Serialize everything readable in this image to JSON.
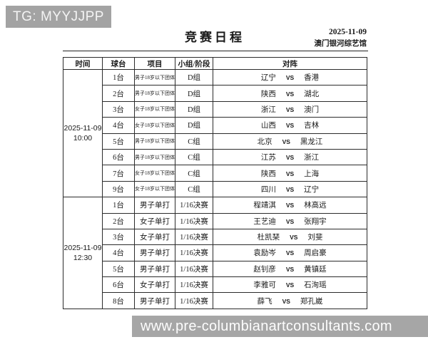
{
  "watermarks": {
    "top": "TG: MYYJJPP",
    "bottom": "www.pre-columbianartconsultants.com"
  },
  "header": {
    "title": "竞赛日程",
    "date": "2025-11-09",
    "venue": "澳门银河综艺馆"
  },
  "table": {
    "columns": [
      "时间",
      "球台",
      "项目",
      "小组/阶段",
      "对阵"
    ],
    "blocks": [
      {
        "time_line1": "2025-11-09",
        "time_line2": "10:00",
        "rows": [
          {
            "table_no": "1台",
            "event": "男子18岁以下团体",
            "stage": "D组",
            "home": "辽宁",
            "vs": "VS",
            "away": "香港"
          },
          {
            "table_no": "2台",
            "event": "男子18岁以下团体",
            "stage": "D组",
            "home": "陕西",
            "vs": "VS",
            "away": "湖北"
          },
          {
            "table_no": "3台",
            "event": "女子18岁以下团体",
            "stage": "D组",
            "home": "浙江",
            "vs": "VS",
            "away": "澳门"
          },
          {
            "table_no": "4台",
            "event": "女子18岁以下团体",
            "stage": "D组",
            "home": "山西",
            "vs": "VS",
            "away": "吉林"
          },
          {
            "table_no": "5台",
            "event": "男子18岁以下团体",
            "stage": "C组",
            "home": "北京",
            "vs": "VS",
            "away": "黑龙江"
          },
          {
            "table_no": "6台",
            "event": "男子18岁以下团体",
            "stage": "C组",
            "home": "江苏",
            "vs": "VS",
            "away": "浙江"
          },
          {
            "table_no": "7台",
            "event": "女子18岁以下团体",
            "stage": "C组",
            "home": "陕西",
            "vs": "VS",
            "away": "上海"
          },
          {
            "table_no": "9台",
            "event": "女子18岁以下团体",
            "stage": "C组",
            "home": "四川",
            "vs": "VS",
            "away": "辽宁"
          }
        ]
      },
      {
        "time_line1": "2025-11-09",
        "time_line2": "12:30",
        "rows": [
          {
            "table_no": "1台",
            "event": "男子单打",
            "stage": "1/16决赛",
            "home": "程靖淇",
            "vs": "VS",
            "away": "林高远"
          },
          {
            "table_no": "2台",
            "event": "女子单打",
            "stage": "1/16决赛",
            "home": "王艺迪",
            "vs": "VS",
            "away": "张翔宇"
          },
          {
            "table_no": "3台",
            "event": "女子单打",
            "stage": "1/16决赛",
            "home": "杜凯琹",
            "vs": "VS",
            "away": "刘斐"
          },
          {
            "table_no": "4台",
            "event": "男子单打",
            "stage": "1/16决赛",
            "home": "袁励岑",
            "vs": "VS",
            "away": "周启豪"
          },
          {
            "table_no": "5台",
            "event": "男子单打",
            "stage": "1/16决赛",
            "home": "赵钊彦",
            "vs": "VS",
            "away": "黄镇廷"
          },
          {
            "table_no": "6台",
            "event": "女子单打",
            "stage": "1/16决赛",
            "home": "李雅可",
            "vs": "VS",
            "away": "石洵瑶"
          },
          {
            "table_no": "8台",
            "event": "男子单打",
            "stage": "1/16决赛",
            "home": "薛飞",
            "vs": "VS",
            "away": "郑孔崴"
          }
        ]
      }
    ]
  },
  "colors": {
    "watermark_gray": "#a6a6a6",
    "border_black": "#1a1a1a",
    "paper_white": "#ffffff"
  }
}
